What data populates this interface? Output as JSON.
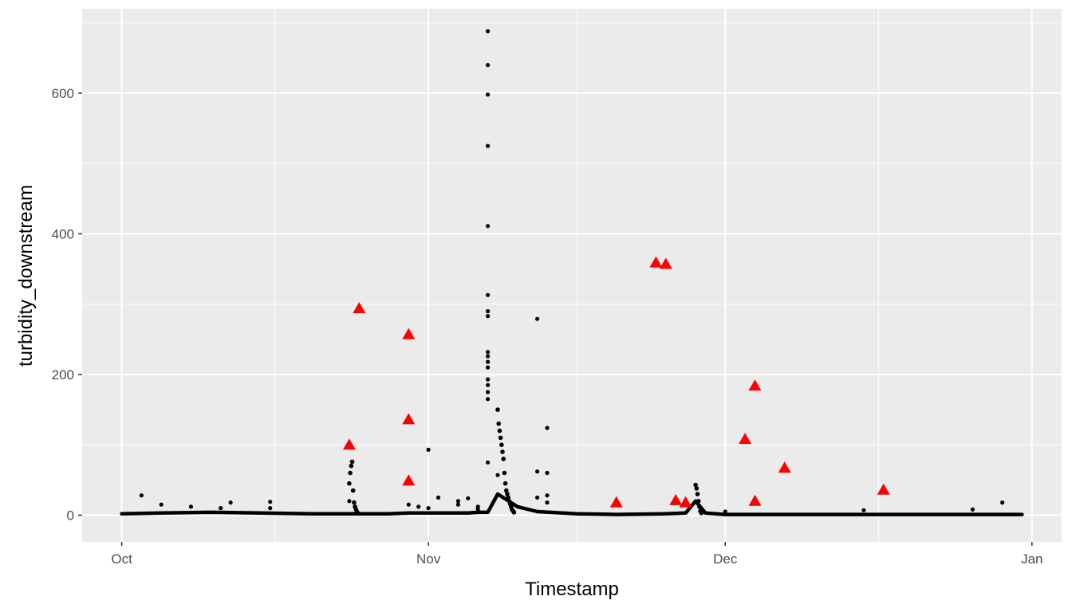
{
  "chart_data": {
    "type": "scatter",
    "title": "",
    "xlabel": "Timestamp",
    "ylabel": "turbidity_downstream",
    "x_axis_type": "date",
    "xlim": [
      "2023-09-27",
      "2024-01-04"
    ],
    "ylim": [
      -38,
      720
    ],
    "x_ticks": [
      {
        "date": "2023-10-01",
        "label": "Oct"
      },
      {
        "date": "2023-11-01",
        "label": "Nov"
      },
      {
        "date": "2023-12-01",
        "label": "Dec"
      },
      {
        "date": "2024-01-01",
        "label": "Jan"
      }
    ],
    "y_ticks": [
      0,
      200,
      400,
      600
    ],
    "grid": true,
    "legend": "none",
    "colors": {
      "panel_background": "#ebebeb",
      "grid": "#ffffff",
      "observed_points": "#000000",
      "flagged_points": "#ff0000"
    },
    "series": [
      {
        "marker": "circle",
        "color": "#000000",
        "baseline": [
          [
            "2023-10-01",
            2
          ],
          [
            "2023-10-05",
            3
          ],
          [
            "2023-10-10",
            4
          ],
          [
            "2023-10-15",
            3
          ],
          [
            "2023-10-20",
            2
          ],
          [
            "2023-10-25",
            2
          ],
          [
            "2023-10-28",
            2
          ],
          [
            "2023-10-30",
            3
          ],
          [
            "2023-11-02",
            3
          ],
          [
            "2023-11-05",
            3
          ],
          [
            "2023-11-06",
            4
          ],
          [
            "2023-11-07",
            4
          ],
          [
            "2023-11-08",
            30
          ],
          [
            "2023-11-10",
            12
          ],
          [
            "2023-11-12",
            5
          ],
          [
            "2023-11-16",
            2
          ],
          [
            "2023-11-20",
            1
          ],
          [
            "2023-11-25",
            2
          ],
          [
            "2023-11-27",
            3
          ],
          [
            "2023-11-28",
            20
          ],
          [
            "2023-11-29",
            3
          ],
          [
            "2023-12-01",
            1
          ],
          [
            "2023-12-10",
            1
          ],
          [
            "2023-12-20",
            1
          ],
          [
            "2023-12-31",
            1
          ]
        ],
        "spikes": [
          {
            "x": "2023-10-24",
            "values": [
              45,
              60,
              70,
              76,
              35,
              18,
              12,
              8,
              5,
              3
            ]
          },
          {
            "x": "2023-11-08",
            "values": [
              150,
              130,
              120,
              110,
              100,
              90,
              80,
              60,
              45,
              35,
              30,
              25,
              20,
              16,
              12,
              8,
              6,
              4
            ]
          },
          {
            "x": "2023-11-28",
            "values": [
              43,
              38,
              30,
              20,
              12,
              6,
              3
            ]
          }
        ],
        "points": [
          [
            "2023-10-03",
            28
          ],
          [
            "2023-10-05",
            15
          ],
          [
            "2023-10-08",
            12
          ],
          [
            "2023-10-11",
            10
          ],
          [
            "2023-10-12",
            18
          ],
          [
            "2023-10-16",
            19
          ],
          [
            "2023-10-16",
            10
          ],
          [
            "2023-10-24",
            20
          ],
          [
            "2023-10-30",
            15
          ],
          [
            "2023-10-31",
            12
          ],
          [
            "2023-11-01",
            93
          ],
          [
            "2023-11-01",
            10
          ],
          [
            "2023-11-02",
            25
          ],
          [
            "2023-11-04",
            20
          ],
          [
            "2023-11-04",
            15
          ],
          [
            "2023-11-05",
            24
          ],
          [
            "2023-11-06",
            12
          ],
          [
            "2023-11-06",
            8
          ],
          [
            "2023-11-07",
            688
          ],
          [
            "2023-11-07",
            640
          ],
          [
            "2023-11-07",
            598
          ],
          [
            "2023-11-07",
            525
          ],
          [
            "2023-11-07",
            411
          ],
          [
            "2023-11-07",
            313
          ],
          [
            "2023-11-07",
            290
          ],
          [
            "2023-11-07",
            283
          ],
          [
            "2023-11-07",
            232
          ],
          [
            "2023-11-07",
            226
          ],
          [
            "2023-11-07",
            218
          ],
          [
            "2023-11-07",
            210
          ],
          [
            "2023-11-07",
            193
          ],
          [
            "2023-11-07",
            185
          ],
          [
            "2023-11-07",
            175
          ],
          [
            "2023-11-07",
            165
          ],
          [
            "2023-11-07",
            75
          ],
          [
            "2023-11-08",
            57
          ],
          [
            "2023-11-12",
            279
          ],
          [
            "2023-11-12",
            62
          ],
          [
            "2023-11-12",
            25
          ],
          [
            "2023-11-13",
            124
          ],
          [
            "2023-11-13",
            60
          ],
          [
            "2023-11-13",
            28
          ],
          [
            "2023-11-13",
            18
          ],
          [
            "2023-12-01",
            5
          ],
          [
            "2023-12-15",
            7
          ],
          [
            "2023-12-26",
            8
          ],
          [
            "2023-12-29",
            18
          ]
        ]
      },
      {
        "marker": "triangle",
        "color": "#ff0000",
        "points": [
          [
            "2023-10-24",
            100
          ],
          [
            "2023-10-25",
            294
          ],
          [
            "2023-10-30",
            49
          ],
          [
            "2023-10-30",
            257
          ],
          [
            "2023-10-30",
            136
          ],
          [
            "2023-11-20",
            18
          ],
          [
            "2023-11-24",
            359
          ],
          [
            "2023-11-25",
            357
          ],
          [
            "2023-11-26",
            21
          ],
          [
            "2023-11-27",
            18
          ],
          [
            "2023-12-03",
            108
          ],
          [
            "2023-12-04",
            184
          ],
          [
            "2023-12-04",
            20
          ],
          [
            "2023-12-07",
            67
          ],
          [
            "2023-12-17",
            36
          ]
        ]
      }
    ]
  }
}
